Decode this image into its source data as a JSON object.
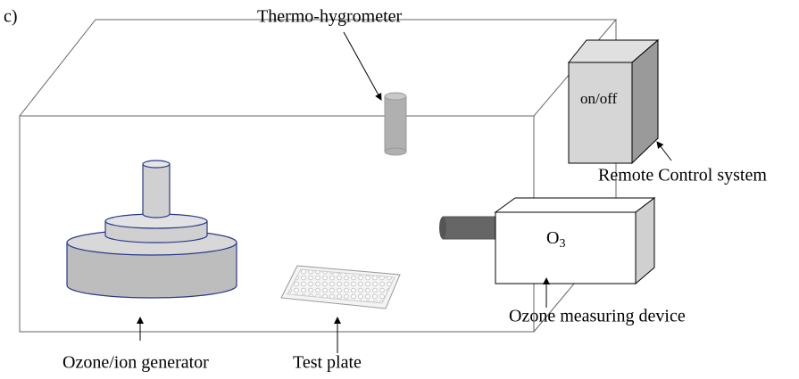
{
  "panel_label": "c)",
  "labels": {
    "thermo": "Thermo-hygrometer",
    "switch": "on/off",
    "remote": "Remote Control system",
    "ozone_symbol": {
      "base": "O",
      "subscript": "3"
    },
    "ozone_device": "Ozone measuring device",
    "generator": "Ozone/ion generator",
    "plate": "Test plate"
  }
}
